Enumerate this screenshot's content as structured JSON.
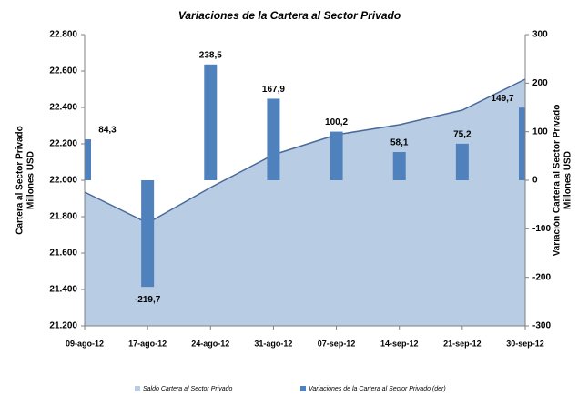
{
  "chart_data": {
    "type": "bar_area_combo",
    "title": "Variaciones de la Cartera al Sector Privado",
    "y_label": [
      "Cartera al Sector Privado",
      "Millones USD"
    ],
    "y2_label": [
      "Variación  Cartera al Sector Privado",
      "Millones USD"
    ],
    "categories": [
      "09-ago-12",
      "17-ago-12",
      "24-ago-12",
      "31-ago-12",
      "07-sep-12",
      "14-sep-12",
      "21-sep-12",
      "30-sep-12"
    ],
    "series": [
      {
        "name": "Saldo Cartera al Sector Privado",
        "type": "area",
        "color": "#b8cce4",
        "line_color": "#4a6a9c",
        "values": [
          21935,
          21765,
          21960,
          22140,
          22250,
          22305,
          22385,
          22555
        ]
      },
      {
        "name": "Variaciones de la Cartera al Sector Privado (der)",
        "type": "bar",
        "axis": "y2",
        "color": "#4f81bd",
        "values": [
          84.3,
          -219.7,
          238.5,
          167.9,
          100.2,
          58.1,
          75.2,
          149.7
        ],
        "value_labels": [
          "84,3",
          "-219,7",
          "238,5",
          "167,9",
          "100,2",
          "58,1",
          "75,2",
          "149,7"
        ]
      }
    ],
    "ylim": [
      21200,
      22800
    ],
    "yticks": [
      {
        "value": 21200,
        "label": "21.200"
      },
      {
        "value": 21400,
        "label": "21.400"
      },
      {
        "value": 21600,
        "label": "21.600"
      },
      {
        "value": 21800,
        "label": "21.800"
      },
      {
        "value": 22000,
        "label": "22.000"
      },
      {
        "value": 22200,
        "label": "22.200"
      },
      {
        "value": 22400,
        "label": "22.400"
      },
      {
        "value": 22600,
        "label": "22.600"
      },
      {
        "value": 22800,
        "label": "22.800"
      }
    ],
    "y2lim": [
      -300,
      300
    ],
    "y2ticks": [
      -300,
      -200,
      -100,
      0,
      100,
      200,
      300
    ],
    "grid": false
  }
}
